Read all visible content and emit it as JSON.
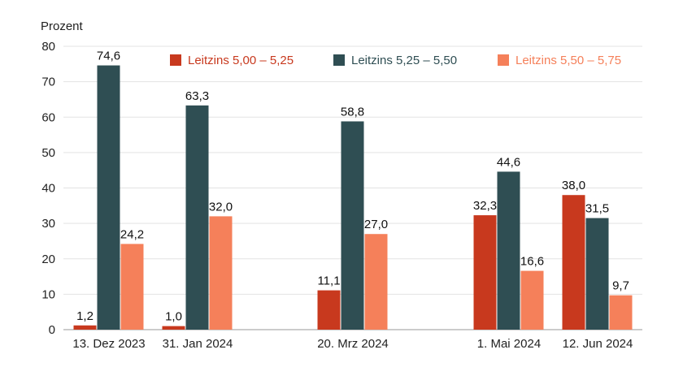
{
  "chart_data": {
    "type": "bar",
    "ylabel": "Prozent",
    "ylim": [
      0,
      80
    ],
    "yticks": [
      0,
      10,
      20,
      30,
      40,
      50,
      60,
      70,
      80
    ],
    "grid": true,
    "legend_position": "top",
    "categories": [
      "13. Dez 2023",
      "31. Jan 2024",
      "20. Mrz 2024",
      "1. Mai 2024",
      "12. Jun 2024"
    ],
    "series": [
      {
        "name": "Leitzins 5,00 – 5,25",
        "color": "#c8391e",
        "values": [
          1.2,
          1.0,
          11.1,
          32.3,
          38.0
        ],
        "labels": [
          "1,2",
          "1,0",
          "11,1",
          "32,3",
          "38,0"
        ]
      },
      {
        "name": "Leitzins 5,25 – 5,50",
        "color": "#2f4e53",
        "values": [
          74.6,
          63.3,
          58.8,
          44.6,
          31.5
        ],
        "labels": [
          "74,6",
          "63,3",
          "58,8",
          "44,6",
          "31,5"
        ]
      },
      {
        "name": "Leitzins 5,50 – 5,75",
        "color": "#f5805a",
        "values": [
          24.2,
          32.0,
          27.0,
          16.6,
          9.7
        ],
        "labels": [
          "24,2",
          "32,0",
          "27,0",
          "16,6",
          "9,7"
        ]
      }
    ]
  }
}
